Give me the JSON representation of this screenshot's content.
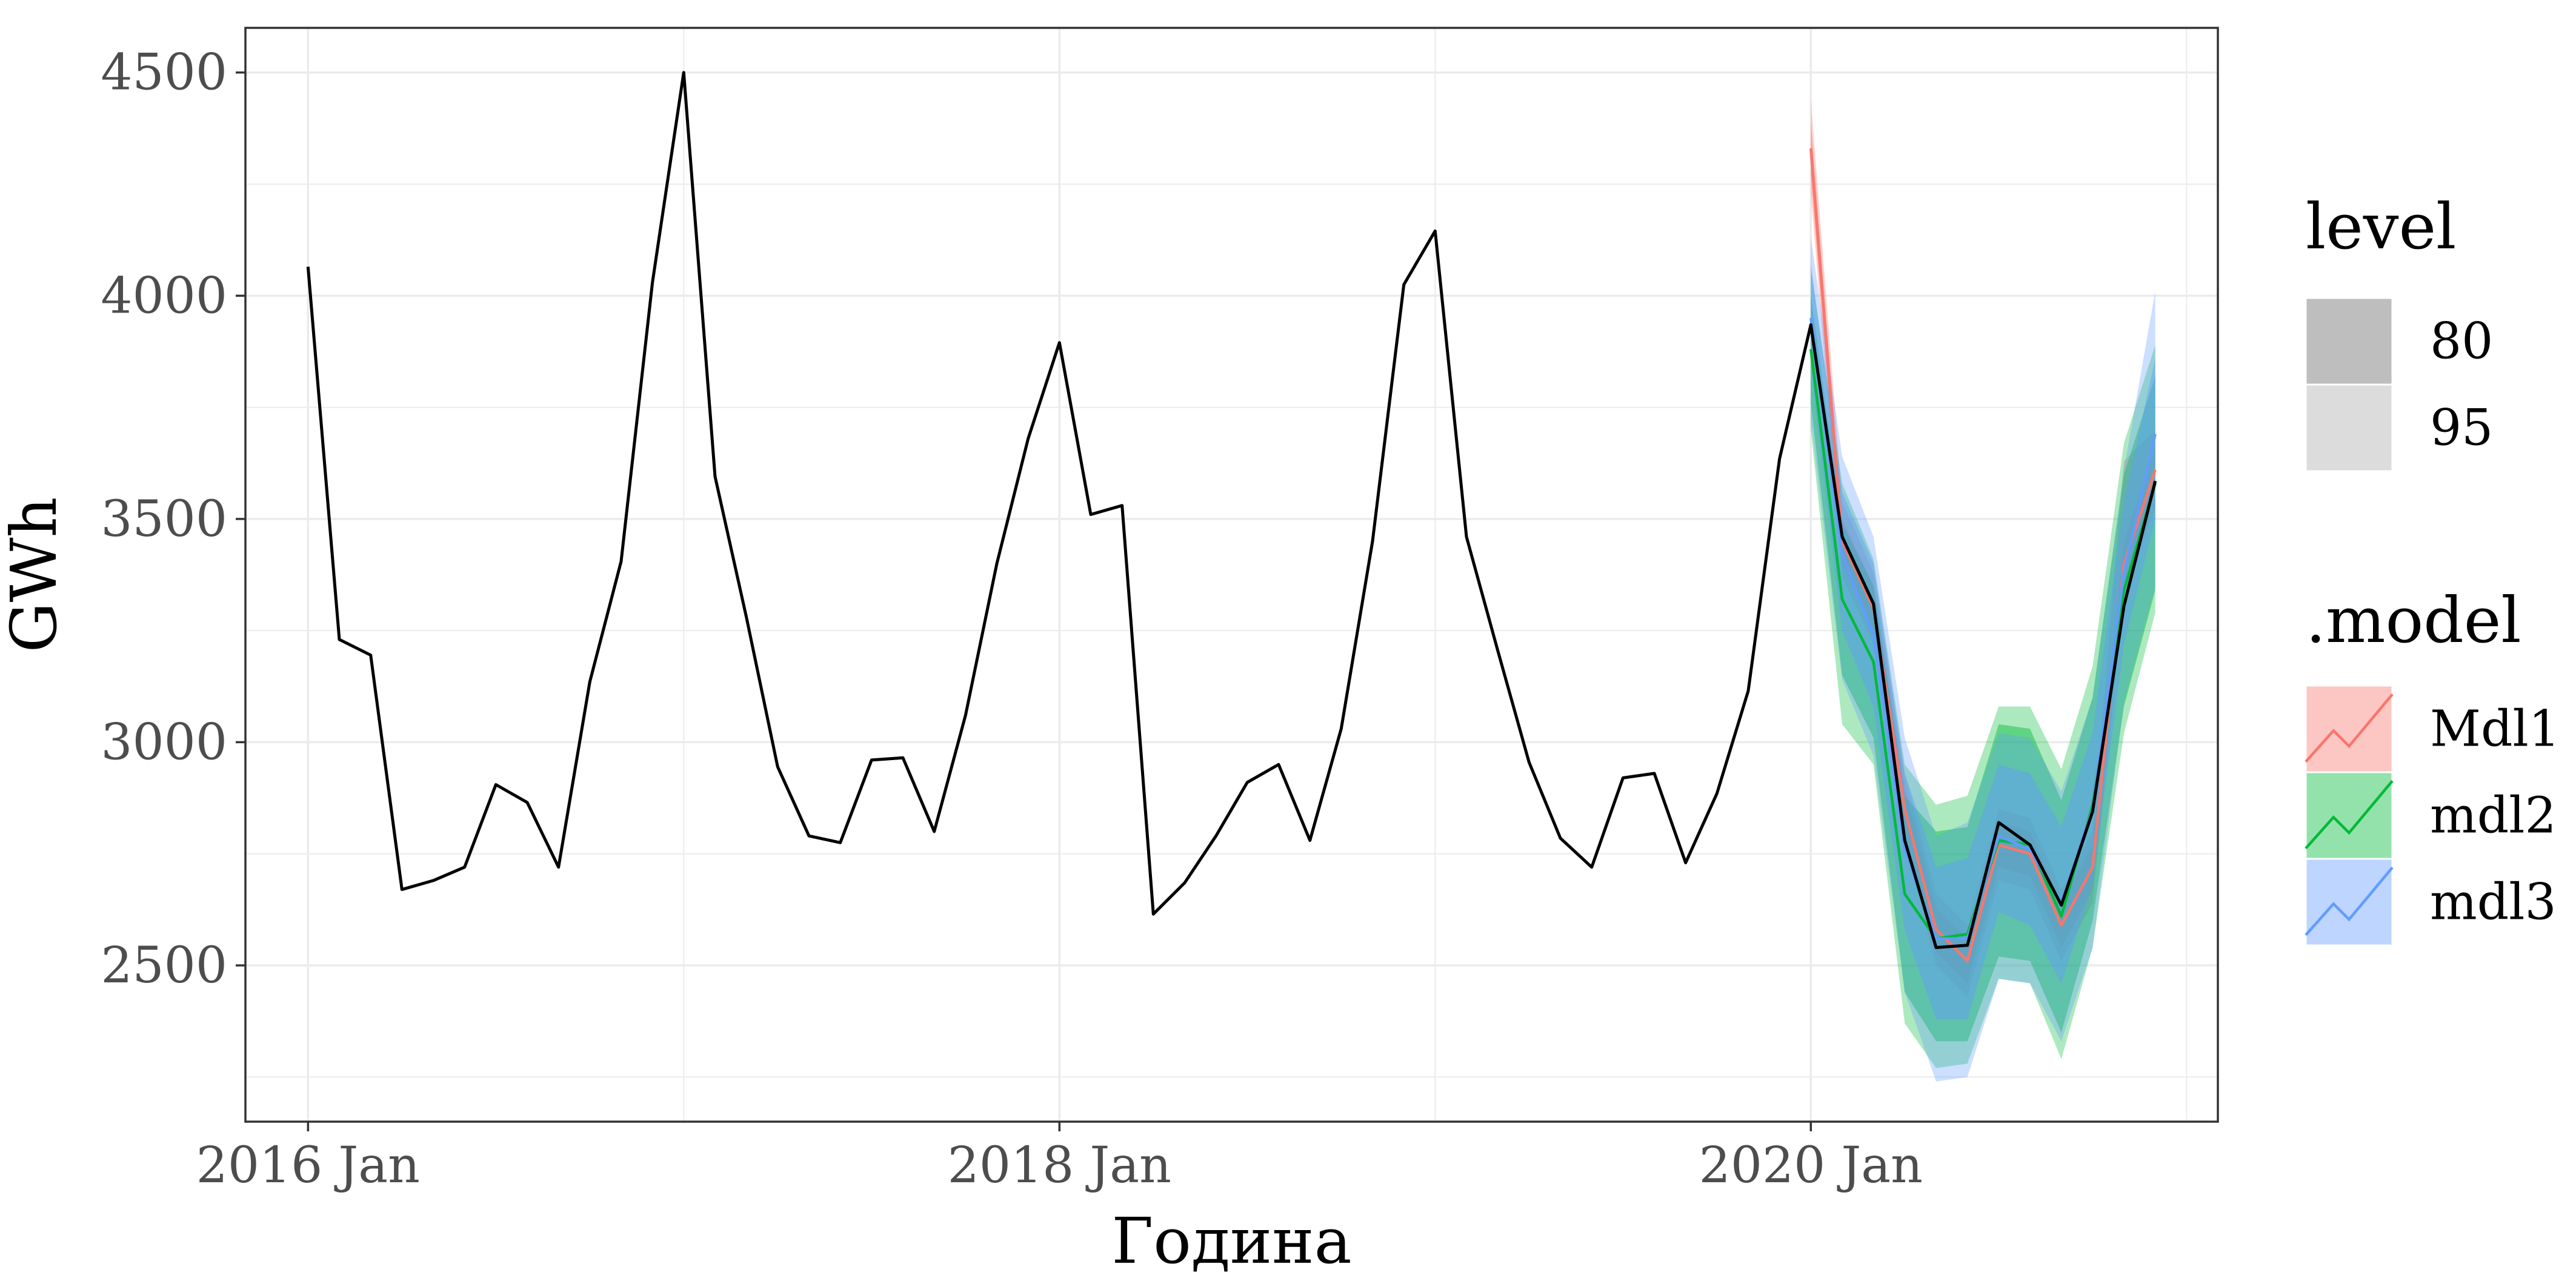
{
  "chart_data": {
    "type": "line",
    "xlabel": "Година",
    "ylabel": "GWh",
    "x_ticks": [
      {
        "x": "2016-01",
        "label": "2016 Jan"
      },
      {
        "x": "2018-01",
        "label": "2018 Jan"
      },
      {
        "x": "2020-01",
        "label": "2020 Jan"
      }
    ],
    "y_ticks": [
      2500,
      3000,
      3500,
      4000,
      4500
    ],
    "xlim": [
      "2015-11",
      "2021-02"
    ],
    "ylim": [
      2150,
      4600
    ],
    "grid": true,
    "legend_position": "right",
    "colors": {
      "observed": "#000000",
      "Mdl1": "#F8766D",
      "mdl2": "#00BA38",
      "mdl3": "#619CFF"
    },
    "observed": {
      "x": [
        "2016-01",
        "2016-02",
        "2016-03",
        "2016-04",
        "2016-05",
        "2016-06",
        "2016-07",
        "2016-08",
        "2016-09",
        "2016-10",
        "2016-11",
        "2016-12",
        "2017-01",
        "2017-02",
        "2017-03",
        "2017-04",
        "2017-05",
        "2017-06",
        "2017-07",
        "2017-08",
        "2017-09",
        "2017-10",
        "2017-11",
        "2017-12",
        "2018-01",
        "2018-02",
        "2018-03",
        "2018-04",
        "2018-05",
        "2018-06",
        "2018-07",
        "2018-08",
        "2018-09",
        "2018-10",
        "2018-11",
        "2018-12",
        "2019-01",
        "2019-02",
        "2019-03",
        "2019-04",
        "2019-05",
        "2019-06",
        "2019-07",
        "2019-08",
        "2019-09",
        "2019-10",
        "2019-11",
        "2019-12",
        "2020-01",
        "2020-02",
        "2020-03",
        "2020-04",
        "2020-05",
        "2020-06",
        "2020-07",
        "2020-08",
        "2020-09",
        "2020-10",
        "2020-11",
        "2020-12"
      ],
      "y": [
        4065,
        3230,
        3195,
        2670,
        2690,
        2720,
        2905,
        2865,
        2720,
        3135,
        3405,
        4030,
        4500,
        3595,
        3280,
        2945,
        2790,
        2775,
        2960,
        2965,
        2800,
        3060,
        3400,
        3680,
        3895,
        3510,
        3530,
        2615,
        2685,
        2790,
        2910,
        2950,
        2780,
        3030,
        3450,
        4025,
        4145,
        3460,
        3205,
        2955,
        2785,
        2720,
        2920,
        2930,
        2730,
        2885,
        3115,
        3635,
        3935,
        3460,
        3310,
        2780,
        2540,
        2545,
        2820,
        2770,
        2635,
        2845,
        3305,
        3585
      ]
    },
    "forecasts": [
      {
        "name": "Mdl1",
        "x": [
          "2020-01",
          "2020-02",
          "2020-03",
          "2020-04",
          "2020-05",
          "2020-06",
          "2020-07",
          "2020-08",
          "2020-09",
          "2020-10",
          "2020-11",
          "2020-12"
        ],
        "mean": [
          4330,
          3450,
          3300,
          2850,
          2580,
          2510,
          2770,
          2750,
          2590,
          2720,
          3400,
          3610
        ],
        "lo80": [
          4270,
          3400,
          3250,
          2800,
          2530,
          2460,
          2720,
          2700,
          2540,
          2670,
          3350,
          3560
        ],
        "hi80": [
          4390,
          3500,
          3350,
          2900,
          2630,
          2560,
          2820,
          2800,
          2640,
          2770,
          3450,
          3660
        ],
        "lo95": [
          4230,
          3370,
          3220,
          2770,
          2500,
          2430,
          2690,
          2670,
          2510,
          2640,
          3320,
          3530
        ],
        "hi95": [
          4440,
          3540,
          3380,
          2930,
          2660,
          2590,
          2850,
          2830,
          2670,
          2800,
          3630,
          3700
        ]
      },
      {
        "name": "mdl2",
        "x": [
          "2020-01",
          "2020-02",
          "2020-03",
          "2020-04",
          "2020-05",
          "2020-06",
          "2020-07",
          "2020-08",
          "2020-09",
          "2020-10",
          "2020-11",
          "2020-12"
        ],
        "mean": [
          3880,
          3320,
          3180,
          2660,
          2560,
          2570,
          2780,
          2770,
          2610,
          2860,
          3340,
          3580
        ],
        "lo80": [
          3760,
          3150,
          3010,
          2440,
          2330,
          2330,
          2520,
          2510,
          2350,
          2600,
          3080,
          3340
        ],
        "hi80": [
          4000,
          3490,
          3350,
          2880,
          2800,
          2810,
          3040,
          3030,
          2870,
          3100,
          3600,
          3820
        ],
        "lo95": [
          3700,
          3040,
          2950,
          2370,
          2270,
          2280,
          2470,
          2460,
          2290,
          2540,
          3020,
          3290
        ],
        "hi95": [
          4060,
          3580,
          3410,
          2950,
          2860,
          2880,
          3080,
          3080,
          2940,
          3170,
          3670,
          3890
        ]
      },
      {
        "name": "mdl3",
        "x": [
          "2020-01",
          "2020-02",
          "2020-03",
          "2020-04",
          "2020-05",
          "2020-06",
          "2020-07",
          "2020-08",
          "2020-09",
          "2020-10",
          "2020-11",
          "2020-12"
        ],
        "mean": [
          3950,
          3420,
          3240,
          2760,
          2560,
          2560,
          2790,
          2760,
          2640,
          2850,
          3380,
          3690
        ],
        "lo80": [
          3830,
          3250,
          3080,
          2580,
          2380,
          2380,
          2620,
          2590,
          2460,
          2680,
          3220,
          3500
        ],
        "hi80": [
          4070,
          3560,
          3400,
          2930,
          2720,
          2740,
          2950,
          2930,
          2810,
          3020,
          3540,
          3860
        ],
        "lo95": [
          3720,
          3140,
          2970,
          2440,
          2240,
          2250,
          2470,
          2460,
          2330,
          2540,
          3090,
          3350
        ],
        "hi95": [
          4130,
          3640,
          3460,
          3010,
          2790,
          2820,
          3020,
          3010,
          2890,
          3100,
          3610,
          4010
        ]
      }
    ],
    "legend": {
      "level_title": "level",
      "levels": [
        "80",
        "95"
      ],
      "model_title": ".model",
      "models": [
        "Mdl1",
        "mdl2",
        "mdl3"
      ]
    }
  }
}
